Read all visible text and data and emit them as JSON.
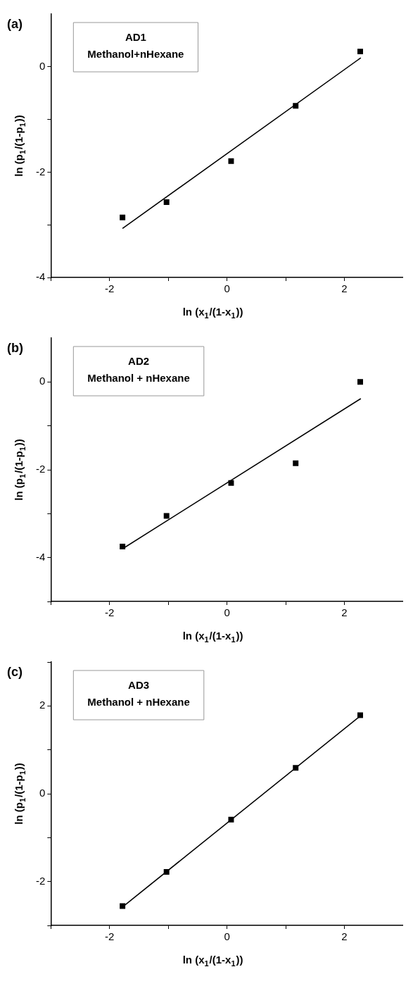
{
  "chart_data": [
    {
      "type": "scatter",
      "xlabel": "ln (x$_{1}$/(1-x$_{1}$))",
      "ylabel": "ln (p$_{1}$/(1-p$_{1}$))",
      "annotations": [
        "(a)",
        "AD1\nMethanol+nHexane"
      ],
      "xlim": [
        -3,
        3
      ],
      "ylim": [
        -4,
        1
      ],
      "xticks": [
        {
          "value": -3,
          "label": null
        },
        -2,
        {
          "value": -1,
          "label": null
        },
        0,
        {
          "value": 1,
          "label": null
        },
        2
      ],
      "yticks": [
        -4,
        {
          "value": -3,
          "label": null
        },
        -2,
        {
          "value": -1,
          "label": null
        },
        0
      ],
      "marker": "square",
      "series": [
        {
          "type": "scatter",
          "color": "#000000",
          "x": [
            -1.78,
            -1.03,
            0.07,
            1.17,
            2.27
          ],
          "values": [
            -2.86,
            -2.57,
            -1.79,
            -0.74,
            0.29
          ]
        },
        {
          "type": "line",
          "color": "#000000",
          "marker": "none",
          "line_style": "solid",
          "x": [
            -1.78,
            2.28
          ],
          "values": [
            -3.07,
            0.17
          ]
        }
      ]
    },
    {
      "type": "scatter",
      "xlabel": "ln (x$_{1}$/(1-x$_{1}$))",
      "ylabel": "ln (p$_{1}$/(1-p$_{1}$))",
      "annotations": [
        "(b)",
        "AD2\nMethanol + nHexane"
      ],
      "xlim": [
        -3,
        3
      ],
      "ylim": [
        -5,
        1
      ],
      "xticks": [
        {
          "value": -3,
          "label": null
        },
        -2,
        {
          "value": -1,
          "label": null
        },
        0,
        {
          "value": 1,
          "label": null
        },
        2
      ],
      "yticks": [
        {
          "value": -5,
          "label": null
        },
        -4,
        {
          "value": -3,
          "label": null
        },
        -2,
        {
          "value": -1,
          "label": null
        },
        0
      ],
      "marker": "square",
      "series": [
        {
          "type": "scatter",
          "color": "#000000",
          "x": [
            -1.78,
            -1.03,
            0.07,
            1.17,
            2.27
          ],
          "values": [
            -3.75,
            -3.05,
            -2.3,
            -1.85,
            0.0
          ]
        },
        {
          "type": "line",
          "color": "#000000",
          "marker": "none",
          "line_style": "solid",
          "x": [
            -1.78,
            2.28
          ],
          "values": [
            -3.8,
            -0.38
          ]
        }
      ]
    },
    {
      "type": "scatter",
      "xlabel": "ln (x$_{1}$/(1-x$_{1}$))",
      "ylabel": "ln (p$_{1}$/(1-p$_{1}$))",
      "annotations": [
        "(c)",
        "AD3\nMethanol + nHexane"
      ],
      "xlim": [
        -3,
        3
      ],
      "ylim": [
        -3,
        3
      ],
      "xticks": [
        {
          "value": -3,
          "label": null
        },
        -2,
        {
          "value": -1,
          "label": null
        },
        0,
        {
          "value": 1,
          "label": null
        },
        2
      ],
      "yticks": [
        {
          "value": -3,
          "label": null
        },
        -2,
        {
          "value": -1,
          "label": null
        },
        0,
        {
          "value": 1,
          "label": null
        },
        2,
        {
          "value": 3,
          "label": null
        }
      ],
      "marker": "square",
      "series": [
        {
          "type": "scatter",
          "color": "#000000",
          "x": [
            -1.78,
            -1.03,
            0.07,
            1.17,
            2.27
          ],
          "values": [
            -2.56,
            -1.78,
            -0.59,
            0.59,
            1.79
          ]
        },
        {
          "type": "line",
          "color": "#000000",
          "marker": "none",
          "line_style": "solid",
          "x": [
            -1.78,
            2.28
          ],
          "values": [
            -2.58,
            1.78
          ]
        }
      ]
    }
  ]
}
